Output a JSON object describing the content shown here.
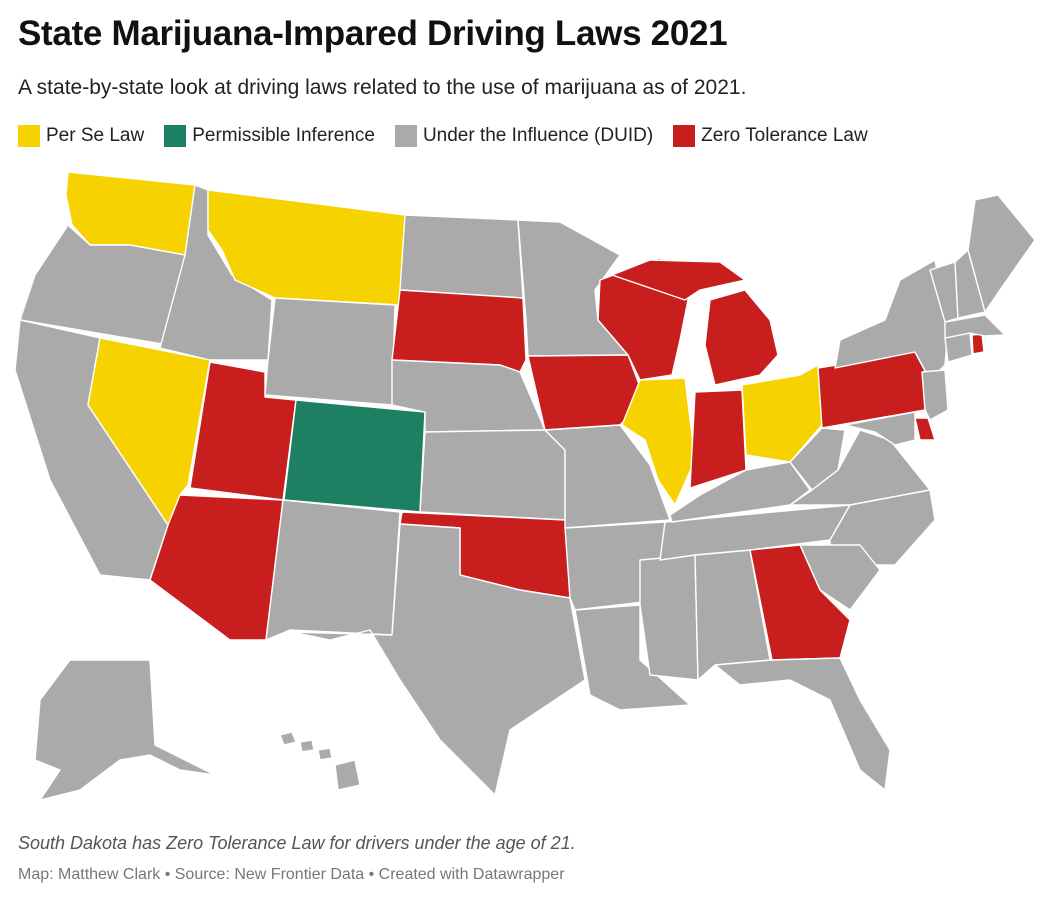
{
  "title": "State Marijuana-Impared Driving Laws 2021",
  "subtitle": "A state-by-state look at driving laws related to the use of marijuana as of 2021.",
  "legend": [
    {
      "label": "Per Se Law",
      "color": "#f5d200"
    },
    {
      "label": "Permissible Inference",
      "color": "#1e8063"
    },
    {
      "label": "Under the Influence (DUID)",
      "color": "#aaaaaa"
    },
    {
      "label": "Zero Tolerance Law",
      "color": "#c81e1e"
    }
  ],
  "chart_data": {
    "type": "choropleth",
    "region": "United States",
    "categories": [
      "Per Se Law",
      "Permissible Inference",
      "Under the Influence (DUID)",
      "Zero Tolerance Law"
    ],
    "states": {
      "Per Se Law": [
        "WA",
        "MT",
        "NV",
        "IL",
        "OH"
      ],
      "Permissible Inference": [
        "CO"
      ],
      "Zero Tolerance Law": [
        "UT",
        "AZ",
        "SD",
        "IA",
        "WI",
        "MI",
        "IN",
        "OK",
        "GA",
        "PA",
        "DE",
        "RI"
      ],
      "Under the Influence (DUID)": [
        "OR",
        "CA",
        "ID",
        "WY",
        "ND",
        "NE",
        "KS",
        "TX",
        "MN",
        "MO",
        "AR",
        "LA",
        "MS",
        "AL",
        "TN",
        "KY",
        "WV",
        "VA",
        "NC",
        "SC",
        "FL",
        "NY",
        "VT",
        "NH",
        "ME",
        "MA",
        "CT",
        "NJ",
        "MD",
        "AK",
        "HI"
      ]
    }
  },
  "note": "South Dakota has Zero Tolerance Law for drivers under the age of 21.",
  "credit": "Map: Matthew Clark • Source: New Frontier Data • Created with Datawrapper"
}
